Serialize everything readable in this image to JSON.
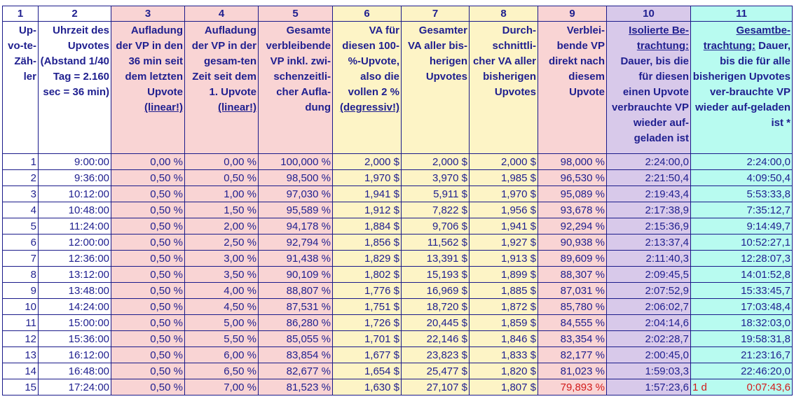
{
  "col_numbers": [
    "1",
    "2",
    "3",
    "4",
    "5",
    "6",
    "7",
    "8",
    "9",
    "10",
    "11"
  ],
  "headers": [
    {
      "plain": "Up-vo-te-Zäh-ler",
      "underlined": ""
    },
    {
      "plain": "Uhrzeit des Upvotes (Abstand 1/40 Tag = 2.160 sec = 36 min)",
      "underlined": ""
    },
    {
      "plain": "Aufladung der VP in den 36 min seit dem letzten Upvote ",
      "underlined": "(linear!)"
    },
    {
      "plain": "Aufladung der VP in der gesam-ten Zeit seit dem 1. Upvote ",
      "underlined": "(linear!)"
    },
    {
      "plain": "Gesamte verbleibende VP inkl. zwi-schenzeitli-cher Aufla-dung",
      "underlined": ""
    },
    {
      "plain": "VA für diesen 100-%-Upvote, also die vollen 2 % ",
      "underlined": "(degressiv!)"
    },
    {
      "plain": "Gesamter VA aller bis-herigen Upvotes",
      "underlined": ""
    },
    {
      "plain": "Durch-schnittli-cher VA aller bisherigen Upvotes",
      "underlined": ""
    },
    {
      "plain": "Verblei-bende VP direkt nach diesem Upvote",
      "underlined": ""
    },
    {
      "underlined": "Isolierte Be-trachtung:",
      "plain": " Dauer, bis die für diesen einen Upvote verbrauchte VP wieder auf-geladen ist"
    },
    {
      "underlined": "Gesamtbe-trachtung:",
      "plain": " Dauer, bis die für alle bisherigen Upvotes ver-brauchte VP wieder auf-geladen ist *"
    }
  ],
  "rows": [
    [
      "1",
      "9:00:00",
      "0,00 %",
      "0,00 %",
      "100,000 %",
      "2,000 $",
      "2,000 $",
      "2,000 $",
      "98,000 %",
      "2:24:00,0",
      "",
      "2:24:00,0"
    ],
    [
      "2",
      "9:36:00",
      "0,50 %",
      "0,50 %",
      "98,500 %",
      "1,970 $",
      "3,970 $",
      "1,985 $",
      "96,530 %",
      "2:21:50,4",
      "",
      "4:09:50,4"
    ],
    [
      "3",
      "10:12:00",
      "0,50 %",
      "1,00 %",
      "97,030 %",
      "1,941 $",
      "5,911 $",
      "1,970 $",
      "95,089 %",
      "2:19:43,4",
      "",
      "5:53:33,8"
    ],
    [
      "4",
      "10:48:00",
      "0,50 %",
      "1,50 %",
      "95,589 %",
      "1,912 $",
      "7,822 $",
      "1,956 $",
      "93,678 %",
      "2:17:38,9",
      "",
      "7:35:12,7"
    ],
    [
      "5",
      "11:24:00",
      "0,50 %",
      "2,00 %",
      "94,178 %",
      "1,884 $",
      "9,706 $",
      "1,941 $",
      "92,294 %",
      "2:15:36,9",
      "",
      "9:14:49,7"
    ],
    [
      "6",
      "12:00:00",
      "0,50 %",
      "2,50 %",
      "92,794 %",
      "1,856 $",
      "11,562 $",
      "1,927 $",
      "90,938 %",
      "2:13:37,4",
      "",
      "10:52:27,1"
    ],
    [
      "7",
      "12:36:00",
      "0,50 %",
      "3,00 %",
      "91,438 %",
      "1,829 $",
      "13,391 $",
      "1,913 $",
      "89,609 %",
      "2:11:40,3",
      "",
      "12:28:07,3"
    ],
    [
      "8",
      "13:12:00",
      "0,50 %",
      "3,50 %",
      "90,109 %",
      "1,802 $",
      "15,193 $",
      "1,899 $",
      "88,307 %",
      "2:09:45,5",
      "",
      "14:01:52,8"
    ],
    [
      "9",
      "13:48:00",
      "0,50 %",
      "4,00 %",
      "88,807 %",
      "1,776 $",
      "16,969 $",
      "1,885 $",
      "87,031 %",
      "2:07:52,9",
      "",
      "15:33:45,7"
    ],
    [
      "10",
      "14:24:00",
      "0,50 %",
      "4,50 %",
      "87,531 %",
      "1,751 $",
      "18,720 $",
      "1,872 $",
      "85,780 %",
      "2:06:02,7",
      "",
      "17:03:48,4"
    ],
    [
      "11",
      "15:00:00",
      "0,50 %",
      "5,00 %",
      "86,280 %",
      "1,726 $",
      "20,445 $",
      "1,859 $",
      "84,555 %",
      "2:04:14,6",
      "",
      "18:32:03,0"
    ],
    [
      "12",
      "15:36:00",
      "0,50 %",
      "5,50 %",
      "85,055 %",
      "1,701 $",
      "22,146 $",
      "1,846 $",
      "83,354 %",
      "2:02:28,7",
      "",
      "19:58:31,8"
    ],
    [
      "13",
      "16:12:00",
      "0,50 %",
      "6,00 %",
      "83,854 %",
      "1,677 $",
      "23,823 $",
      "1,833 $",
      "82,177 %",
      "2:00:45,0",
      "",
      "21:23:16,7"
    ],
    [
      "14",
      "16:48:00",
      "0,50 %",
      "6,50 %",
      "82,677 %",
      "1,654 $",
      "25,477 $",
      "1,820 $",
      "81,023 %",
      "1:59:03,3",
      "",
      "22:46:20,0"
    ],
    [
      "15",
      "17:24:00",
      "0,50 %",
      "7,00 %",
      "81,523 %",
      "1,630 $",
      "27,107 $",
      "1,807 $",
      "79,893 %",
      "1:57:23,6",
      "1 d",
      "0:07:43,6"
    ]
  ],
  "colors": {
    "text": "#1f1f8f",
    "highlight_text": "#d21b1b",
    "pink": "#f9d4d4",
    "yellow": "#fdf4c6",
    "lilac": "#d8c9ea",
    "cyan": "#b8fbf0",
    "border": "#1a1a8a"
  },
  "highlighted_cells": [
    "rows.14.8",
    "rows.14.10",
    "rows.14.11"
  ]
}
